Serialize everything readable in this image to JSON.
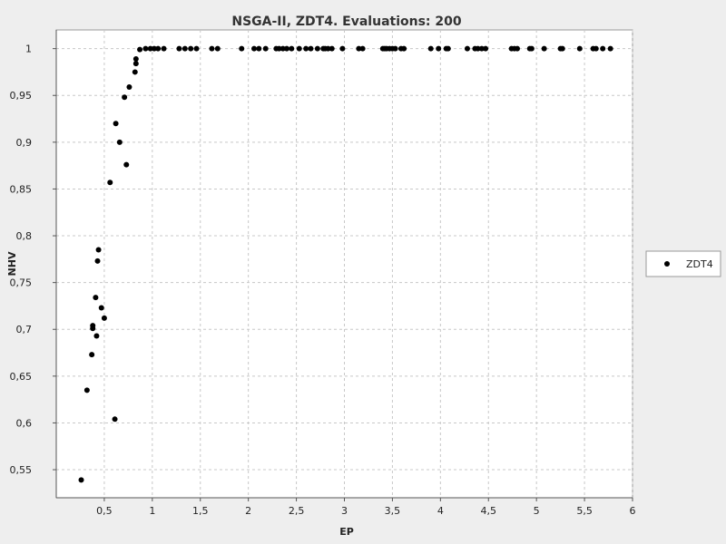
{
  "chart_data": {
    "type": "scatter",
    "title": "NSGA-II, ZDT4. Evaluations: 200",
    "xlabel": "EP",
    "ylabel": "NHV",
    "xlim": [
      0.0,
      6.0
    ],
    "ylim": [
      0.52,
      1.02
    ],
    "xticks": [
      0.5,
      1,
      1.5,
      2,
      2.5,
      3,
      3.5,
      4,
      4.5,
      5,
      5.5,
      6
    ],
    "xtick_labels": [
      "0,5",
      "1",
      "1,5",
      "2",
      "2,5",
      "3",
      "3,5",
      "4",
      "4,5",
      "5",
      "5,5",
      "6"
    ],
    "yticks": [
      0.55,
      0.6,
      0.65,
      0.7,
      0.75,
      0.8,
      0.85,
      0.9,
      0.95,
      1
    ],
    "ytick_labels": [
      "0,55",
      "0,6",
      "0,65",
      "0,7",
      "0,75",
      "0,8",
      "0,85",
      "0,9",
      "0,95",
      "1"
    ],
    "grid": true,
    "legend_position": "right",
    "point_color": "#000000",
    "series": [
      {
        "name": "ZDT4",
        "points": [
          [
            0.26,
            0.539
          ],
          [
            0.32,
            0.635
          ],
          [
            0.37,
            0.673
          ],
          [
            0.38,
            0.701
          ],
          [
            0.38,
            0.704
          ],
          [
            0.41,
            0.734
          ],
          [
            0.42,
            0.693
          ],
          [
            0.43,
            0.773
          ],
          [
            0.44,
            0.785
          ],
          [
            0.47,
            0.723
          ],
          [
            0.5,
            0.712
          ],
          [
            0.56,
            0.857
          ],
          [
            0.61,
            0.604
          ],
          [
            0.62,
            0.92
          ],
          [
            0.66,
            0.9
          ],
          [
            0.71,
            0.948
          ],
          [
            0.73,
            0.876
          ],
          [
            0.76,
            0.959
          ],
          [
            0.82,
            0.975
          ],
          [
            0.83,
            0.984
          ],
          [
            0.83,
            0.989
          ],
          [
            0.87,
            0.999
          ],
          [
            0.93,
            1
          ],
          [
            0.98,
            1
          ],
          [
            1.02,
            1
          ],
          [
            1.06,
            1
          ],
          [
            1.12,
            1
          ],
          [
            1.28,
            1
          ],
          [
            1.34,
            1
          ],
          [
            1.4,
            1
          ],
          [
            1.46,
            1
          ],
          [
            1.62,
            1
          ],
          [
            1.68,
            1
          ],
          [
            1.93,
            1
          ],
          [
            2.06,
            1
          ],
          [
            2.11,
            1
          ],
          [
            2.18,
            1
          ],
          [
            2.29,
            1
          ],
          [
            2.32,
            1
          ],
          [
            2.36,
            1
          ],
          [
            2.4,
            1
          ],
          [
            2.45,
            1
          ],
          [
            2.53,
            1
          ],
          [
            2.6,
            1
          ],
          [
            2.65,
            1
          ],
          [
            2.72,
            1
          ],
          [
            2.78,
            1
          ],
          [
            2.8,
            1
          ],
          [
            2.83,
            1
          ],
          [
            2.87,
            1
          ],
          [
            2.98,
            1
          ],
          [
            3.15,
            1
          ],
          [
            3.19,
            1
          ],
          [
            3.4,
            1
          ],
          [
            3.42,
            1
          ],
          [
            3.44,
            1
          ],
          [
            3.47,
            1
          ],
          [
            3.5,
            1
          ],
          [
            3.53,
            1
          ],
          [
            3.59,
            1
          ],
          [
            3.62,
            1
          ],
          [
            3.9,
            1
          ],
          [
            3.98,
            1
          ],
          [
            4.06,
            1
          ],
          [
            4.08,
            1
          ],
          [
            4.28,
            1
          ],
          [
            4.36,
            1
          ],
          [
            4.39,
            1
          ],
          [
            4.43,
            1
          ],
          [
            4.47,
            1
          ],
          [
            4.74,
            1
          ],
          [
            4.77,
            1
          ],
          [
            4.8,
            1
          ],
          [
            4.93,
            1
          ],
          [
            4.95,
            1
          ],
          [
            5.08,
            1
          ],
          [
            5.25,
            1
          ],
          [
            5.27,
            1
          ],
          [
            5.45,
            1
          ],
          [
            5.59,
            1
          ],
          [
            5.62,
            1
          ],
          [
            5.69,
            1
          ],
          [
            5.77,
            1
          ]
        ]
      }
    ]
  }
}
